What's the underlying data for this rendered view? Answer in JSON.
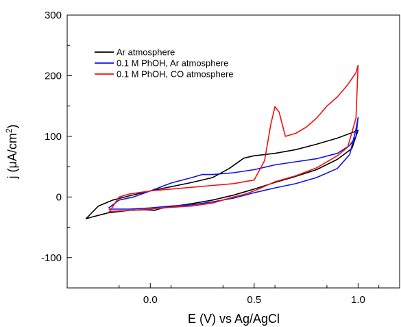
{
  "chart_data": {
    "type": "line",
    "title": "",
    "xlabel": "E (V) vs Ag/AgCl",
    "ylabel_parts": {
      "prefix": "j (",
      "mu": "μ",
      "unit": "A/cm",
      "sup": "2",
      "suffix": ")"
    },
    "xlim": [
      -0.4,
      1.2
    ],
    "ylim": [
      -150,
      300
    ],
    "x_ticks": [
      0.0,
      0.5,
      1.0
    ],
    "x_tick_labels": [
      "0.0",
      "0.5",
      "1.0"
    ],
    "y_ticks": [
      -100,
      0,
      100,
      200,
      300
    ],
    "y_tick_labels": [
      "-100",
      "0",
      "100",
      "200",
      "300"
    ],
    "grid": false,
    "legend_position": "top-left",
    "series": [
      {
        "name": "Ar atmosphere",
        "color": "#000000",
        "points": [
          [
            -0.31,
            -36
          ],
          [
            -0.25,
            -15
          ],
          [
            -0.18,
            -5
          ],
          [
            -0.1,
            2
          ],
          [
            0,
            10
          ],
          [
            0.1,
            17
          ],
          [
            0.2,
            24
          ],
          [
            0.3,
            32
          ],
          [
            0.38,
            47
          ],
          [
            0.45,
            64
          ],
          [
            0.5,
            68
          ],
          [
            0.6,
            72
          ],
          [
            0.7,
            78
          ],
          [
            0.8,
            87
          ],
          [
            0.9,
            97
          ],
          [
            0.97,
            106
          ],
          [
            1.0,
            110
          ],
          [
            0.97,
            80
          ],
          [
            0.9,
            62
          ],
          [
            0.8,
            45
          ],
          [
            0.7,
            34
          ],
          [
            0.6,
            24
          ],
          [
            0.5,
            13
          ],
          [
            0.4,
            3
          ],
          [
            0.3,
            -5
          ],
          [
            0.2,
            -11
          ],
          [
            0.1,
            -16
          ],
          [
            0.05,
            -19
          ],
          [
            0.02,
            -22
          ],
          [
            -0.02,
            -21
          ],
          [
            -0.1,
            -22
          ],
          [
            -0.2,
            -26
          ],
          [
            -0.28,
            -33
          ],
          [
            -0.31,
            -36
          ]
        ]
      },
      {
        "name": "0.1 M PhOH, Ar atmosphere",
        "color": "#1010ee",
        "points": [
          [
            -0.2,
            -18
          ],
          [
            -0.15,
            -5
          ],
          [
            -0.08,
            0
          ],
          [
            0,
            10
          ],
          [
            0.1,
            23
          ],
          [
            0.2,
            32
          ],
          [
            0.25,
            37
          ],
          [
            0.3,
            37
          ],
          [
            0.4,
            40
          ],
          [
            0.5,
            45
          ],
          [
            0.6,
            53
          ],
          [
            0.7,
            58
          ],
          [
            0.8,
            63
          ],
          [
            0.9,
            72
          ],
          [
            0.96,
            85
          ],
          [
            0.99,
            100
          ],
          [
            1.0,
            131
          ],
          [
            0.99,
            112
          ],
          [
            0.96,
            70
          ],
          [
            0.9,
            47
          ],
          [
            0.8,
            32
          ],
          [
            0.7,
            22
          ],
          [
            0.6,
            15
          ],
          [
            0.5,
            7
          ],
          [
            0.4,
            -2
          ],
          [
            0.3,
            -8
          ],
          [
            0.2,
            -13
          ],
          [
            0.1,
            -15
          ],
          [
            0,
            -18
          ],
          [
            -0.1,
            -20
          ],
          [
            -0.2,
            -20
          ]
        ]
      },
      {
        "name": "0.1 M PhOH, CO atmosphere",
        "color": "#ee1111",
        "points": [
          [
            -0.2,
            -26
          ],
          [
            -0.15,
            0
          ],
          [
            -0.1,
            5
          ],
          [
            0,
            10
          ],
          [
            0.1,
            13
          ],
          [
            0.2,
            16
          ],
          [
            0.3,
            19
          ],
          [
            0.4,
            22
          ],
          [
            0.5,
            28
          ],
          [
            0.55,
            60
          ],
          [
            0.58,
            120
          ],
          [
            0.6,
            149
          ],
          [
            0.62,
            140
          ],
          [
            0.65,
            100
          ],
          [
            0.7,
            105
          ],
          [
            0.75,
            115
          ],
          [
            0.8,
            130
          ],
          [
            0.85,
            150
          ],
          [
            0.9,
            165
          ],
          [
            0.95,
            185
          ],
          [
            0.99,
            205
          ],
          [
            1.0,
            217
          ],
          [
            0.99,
            130
          ],
          [
            0.95,
            82
          ],
          [
            0.9,
            68
          ],
          [
            0.8,
            48
          ],
          [
            0.7,
            35
          ],
          [
            0.6,
            25
          ],
          [
            0.5,
            10
          ],
          [
            0.45,
            4
          ],
          [
            0.4,
            0
          ],
          [
            0.3,
            -10
          ],
          [
            0.2,
            -15
          ],
          [
            0.1,
            -17
          ],
          [
            0,
            -20
          ],
          [
            -0.1,
            -22
          ],
          [
            -0.2,
            -24
          ]
        ]
      }
    ]
  }
}
